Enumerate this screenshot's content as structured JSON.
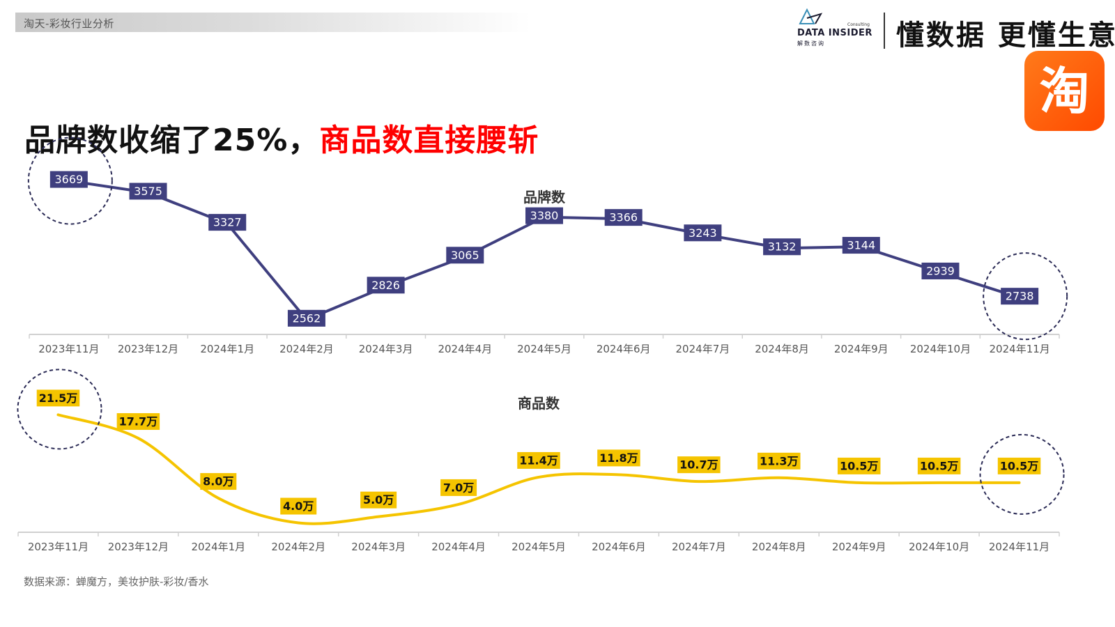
{
  "header": {
    "section_label": "淘天-彩妆行业分析",
    "logo_text": "DATA INSIDER",
    "logo_subtext": "解数咨询",
    "logo_consulting": "Consulting",
    "slogan": "懂数据 更懂生意",
    "app_badge_char": "淘"
  },
  "headline": {
    "part1": "品牌数收缩了25%，",
    "part2": "商品数直接腰斩"
  },
  "colors": {
    "brand_series": "#3f3f7f",
    "product_series": "#f5c400",
    "headline_red": "#ff0000",
    "badge_orange": "#ff5a00",
    "highlight_circle": "#2a2a55"
  },
  "footnote": "数据来源：蝉魔方，美妆护肤-彩妆/香水",
  "chart_data": [
    {
      "type": "line",
      "title": "品牌数",
      "categories": [
        "2023年11月",
        "2023年12月",
        "2024年1月",
        "2024年2月",
        "2024年3月",
        "2024年4月",
        "2024年5月",
        "2024年6月",
        "2024年7月",
        "2024年8月",
        "2024年9月",
        "2024年10月",
        "2024年11月"
      ],
      "series": [
        {
          "values": [
            3669,
            3575,
            3327,
            2562,
            2826,
            3065,
            3380,
            3366,
            3243,
            3132,
            3144,
            2939,
            2738
          ],
          "labels": [
            "3669",
            "3575",
            "3327",
            "2562",
            "2826",
            "3065",
            "3380",
            "3366",
            "3243",
            "3132",
            "3144",
            "2939",
            "2738"
          ]
        }
      ],
      "ylim": [
        1000,
        4000
      ],
      "grid": false,
      "highlight_points": [
        0,
        12
      ]
    },
    {
      "type": "line",
      "title": "商品数",
      "categories": [
        "2023年11月",
        "2023年12月",
        "2024年1月",
        "2024年2月",
        "2024年3月",
        "2024年4月",
        "2024年5月",
        "2024年6月",
        "2024年7月",
        "2024年8月",
        "2024年9月",
        "2024年10月",
        "2024年11月"
      ],
      "series": [
        {
          "values": [
            21.5,
            17.7,
            8.0,
            4.0,
            5.0,
            7.0,
            11.4,
            11.8,
            10.7,
            11.3,
            10.5,
            10.5,
            10.5
          ],
          "labels": [
            "21.5万",
            "17.7万",
            "8.0万",
            "4.0万",
            "5.0万",
            "7.0万",
            "11.4万",
            "11.8万",
            "10.7万",
            "11.3万",
            "10.5万",
            "10.5万",
            "10.5万"
          ]
        }
      ],
      "ylim": [
        0,
        30
      ],
      "grid": false,
      "highlight_points": [
        0,
        12
      ]
    }
  ]
}
